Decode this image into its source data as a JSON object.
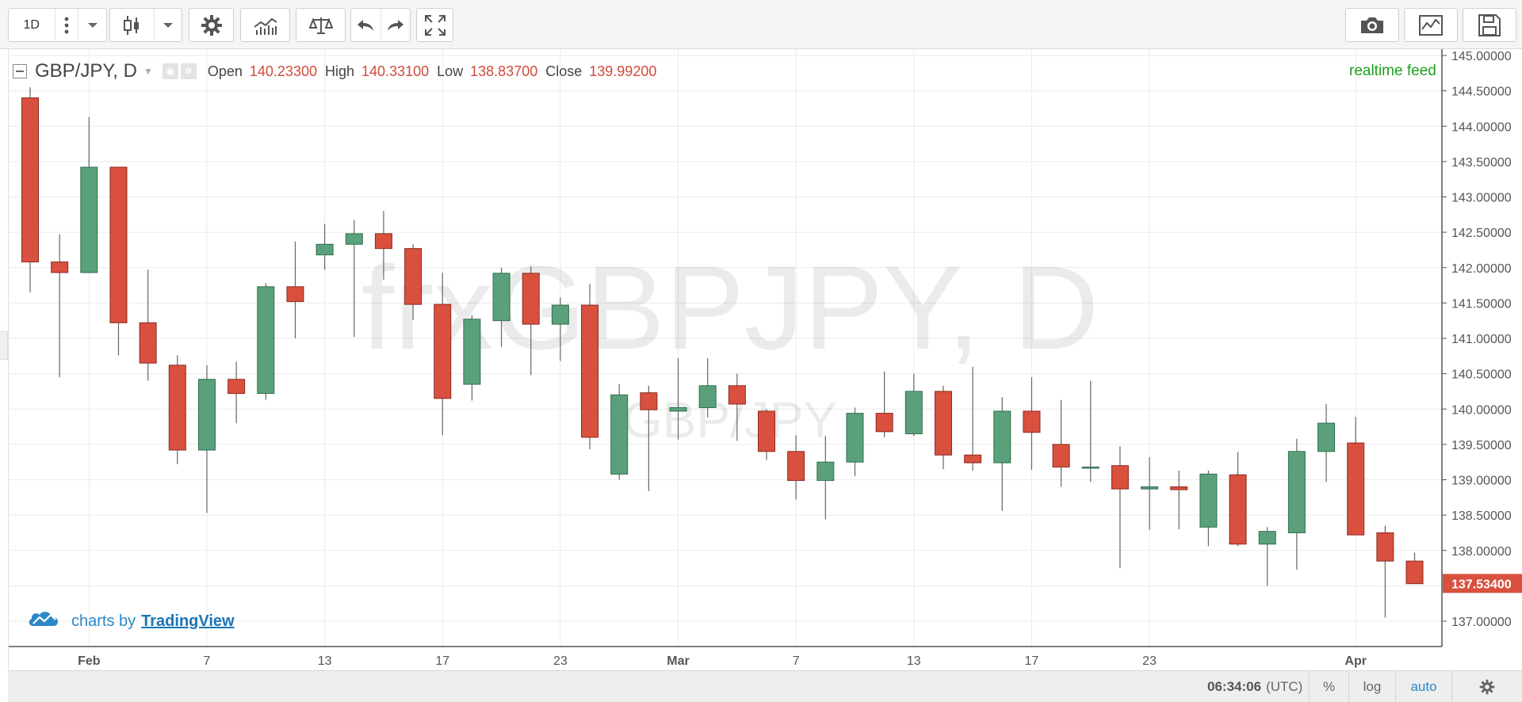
{
  "toolbar": {
    "interval": "1D",
    "icons": [
      "more-vertical-icon",
      "chevron-down-icon",
      "candlestick-icon",
      "chevron-down-icon",
      "gear-icon",
      "indicators-icon",
      "compare-icon",
      "undo-icon",
      "redo-icon",
      "fullscreen-icon",
      "camera-icon",
      "chart-template-icon",
      "save-icon"
    ]
  },
  "legend": {
    "symbol": "GBP/JPY, D",
    "open_label": "Open",
    "open_value": "140.23300",
    "high_label": "High",
    "high_value": "140.33100",
    "low_label": "Low",
    "low_value": "138.83700",
    "close_label": "Close",
    "close_value": "139.99200"
  },
  "feed_label": "realtime feed",
  "watermark": {
    "main": "frxGBPJPY, D",
    "sub": "GBP/JPY"
  },
  "branding": {
    "prefix": "charts by",
    "link": "TradingView"
  },
  "bottom_bar": {
    "time": "06:34:06",
    "timezone": "(UTC)",
    "percent_label": "%",
    "log_label": "log",
    "auto_label": "auto"
  },
  "colors": {
    "up": "#5aa17b",
    "down": "#d9503f",
    "last_price_bg": "#d9503f",
    "feed": "#1f9d1f",
    "brand": "#2b88c7"
  },
  "chart_data": {
    "type": "candlestick",
    "title": "GBP/JPY, D",
    "xlabel": "",
    "ylabel": "",
    "ylim": [
      136.55,
      145.2
    ],
    "y_ticks": [
      137,
      137.5,
      138,
      138.5,
      139,
      139.5,
      140,
      140.5,
      141,
      141.5,
      142,
      142.5,
      143,
      143.5,
      144,
      144.5,
      145
    ],
    "y_tick_labels": [
      "137.00000",
      "137.50000",
      "138.00000",
      "138.50000",
      "139.00000",
      "139.50000",
      "140.00000",
      "140.50000",
      "141.00000",
      "141.50000",
      "142.00000",
      "142.50000",
      "143.00000",
      "143.50000",
      "144.00000",
      "144.50000",
      "145.00000"
    ],
    "x_tick_labels": [
      "Feb",
      "7",
      "13",
      "17",
      "23",
      "Mar",
      "7",
      "13",
      "17",
      "23",
      "Apr"
    ],
    "x_tick_bar_index": [
      2,
      6,
      10,
      14,
      18,
      22,
      26,
      30,
      34,
      38,
      45
    ],
    "last_price": "137.53400",
    "grid": true,
    "ohlc": [
      [
        144.4,
        144.55,
        141.65,
        142.08
      ],
      [
        142.08,
        142.47,
        140.45,
        141.93
      ],
      [
        141.93,
        144.13,
        141.93,
        143.42
      ],
      [
        143.42,
        143.42,
        140.76,
        141.22
      ],
      [
        141.22,
        141.97,
        140.4,
        140.65
      ],
      [
        140.62,
        140.76,
        139.22,
        139.42
      ],
      [
        139.42,
        140.62,
        138.53,
        140.42
      ],
      [
        140.42,
        140.67,
        139.8,
        140.22
      ],
      [
        140.22,
        141.78,
        140.13,
        141.73
      ],
      [
        141.73,
        142.37,
        141.0,
        141.52
      ],
      [
        142.18,
        142.62,
        141.97,
        142.33
      ],
      [
        142.33,
        142.67,
        141.02,
        142.48
      ],
      [
        142.48,
        142.8,
        141.83,
        142.27
      ],
      [
        142.27,
        142.33,
        141.26,
        141.48
      ],
      [
        141.48,
        141.93,
        139.63,
        140.15
      ],
      [
        140.35,
        141.33,
        140.12,
        141.27
      ],
      [
        141.25,
        142.0,
        140.88,
        141.92
      ],
      [
        141.92,
        142.02,
        140.48,
        141.2
      ],
      [
        141.2,
        141.58,
        140.68,
        141.47
      ],
      [
        141.47,
        141.77,
        139.43,
        139.6
      ],
      [
        139.08,
        140.35,
        139.0,
        140.2
      ],
      [
        140.23,
        140.33,
        138.84,
        139.99
      ],
      [
        139.97,
        140.72,
        139.57,
        140.02
      ],
      [
        140.02,
        140.72,
        139.88,
        140.33
      ],
      [
        140.33,
        140.5,
        139.55,
        140.07
      ],
      [
        139.97,
        140.0,
        139.28,
        139.4
      ],
      [
        139.4,
        139.63,
        138.72,
        138.99
      ],
      [
        138.99,
        139.62,
        138.44,
        139.25
      ],
      [
        139.25,
        140.02,
        139.05,
        139.94
      ],
      [
        139.94,
        140.53,
        139.6,
        139.68
      ],
      [
        139.65,
        140.5,
        139.62,
        140.25
      ],
      [
        140.25,
        140.33,
        139.15,
        139.35
      ],
      [
        139.35,
        140.6,
        139.13,
        139.24
      ],
      [
        139.24,
        140.17,
        138.56,
        139.97
      ],
      [
        139.97,
        140.45,
        139.14,
        139.67
      ],
      [
        139.5,
        140.13,
        138.9,
        139.18
      ],
      [
        139.18,
        140.4,
        138.97,
        139.18
      ],
      [
        139.2,
        139.47,
        137.75,
        138.87
      ],
      [
        138.87,
        139.32,
        138.29,
        138.9
      ],
      [
        138.9,
        139.13,
        138.3,
        138.86
      ],
      [
        138.33,
        139.13,
        138.06,
        139.08
      ],
      [
        139.07,
        139.39,
        138.06,
        138.09
      ],
      [
        138.09,
        138.33,
        137.5,
        138.27
      ],
      [
        138.25,
        139.58,
        137.73,
        139.4
      ],
      [
        139.4,
        140.07,
        138.97,
        139.8
      ],
      [
        139.52,
        139.89,
        138.22,
        138.22
      ],
      [
        138.25,
        138.35,
        137.05,
        137.85
      ],
      [
        137.85,
        137.97,
        137.53,
        137.53
      ]
    ]
  }
}
